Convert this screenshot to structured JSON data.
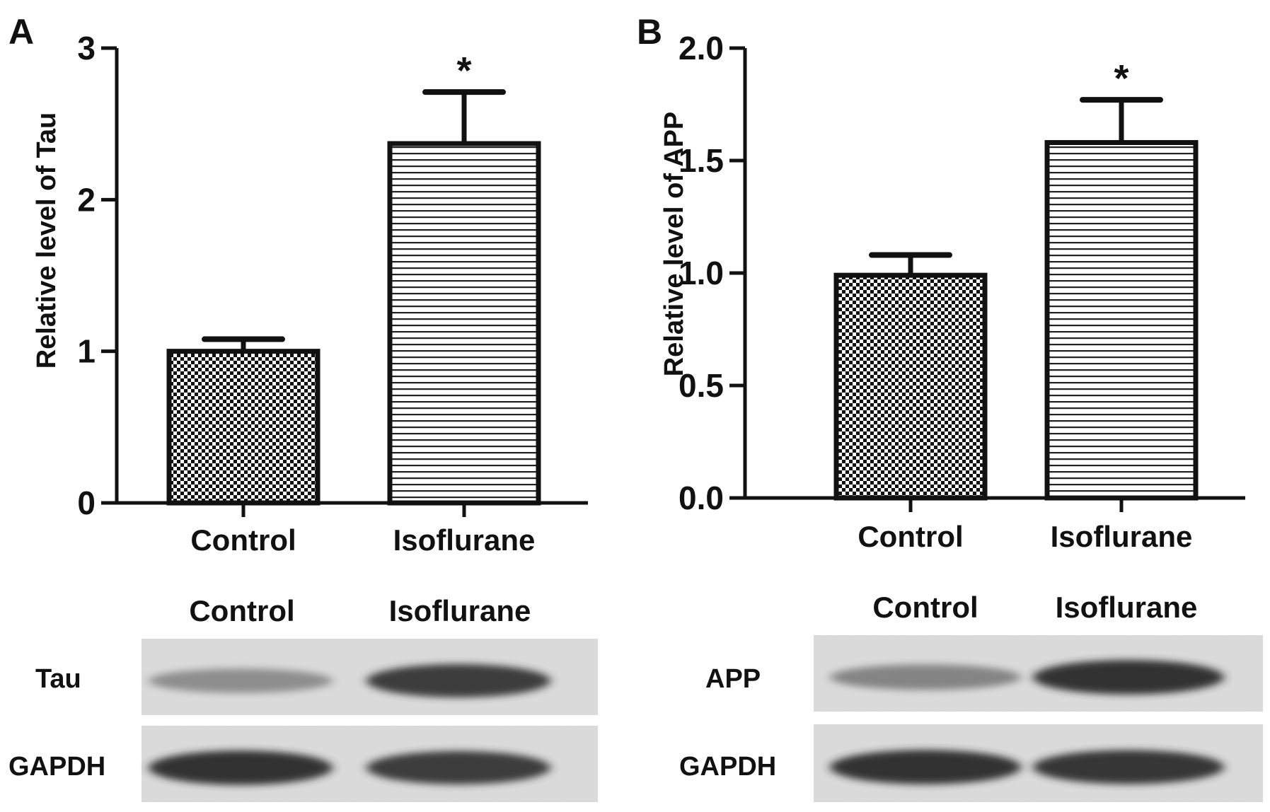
{
  "panels": [
    {
      "letter": "A",
      "blot": {
        "lane_labels": [
          "Control",
          "Isoflurane"
        ],
        "rows": [
          {
            "label": "Tau",
            "band_intensity": [
              0.45,
              0.85
            ]
          },
          {
            "label": "GAPDH",
            "band_intensity": [
              0.9,
              0.85
            ]
          }
        ]
      }
    },
    {
      "letter": "B",
      "blot": {
        "lane_labels": [
          "Control",
          "Isoflurane"
        ],
        "rows": [
          {
            "label": "APP",
            "band_intensity": [
              0.5,
              0.9
            ]
          },
          {
            "label": "GAPDH",
            "band_intensity": [
              0.9,
              0.88
            ]
          }
        ]
      }
    }
  ],
  "chart_data": [
    {
      "type": "bar",
      "categories": [
        "Control",
        "Isoflurane"
      ],
      "values": [
        1.0,
        2.37
      ],
      "errors": [
        0.08,
        0.34
      ],
      "significance": [
        "",
        "*"
      ],
      "ylabel": "Relative level of Tau",
      "ylim": [
        0,
        3
      ],
      "yticks": [
        0,
        1,
        2,
        3
      ],
      "ytick_labels": [
        "0",
        "1",
        "2",
        "3"
      ],
      "patterns": [
        "checker",
        "hlines"
      ],
      "grid": false
    },
    {
      "type": "bar",
      "categories": [
        "Control",
        "Isoflurane"
      ],
      "values": [
        0.99,
        1.58
      ],
      "errors": [
        0.09,
        0.19
      ],
      "significance": [
        "",
        "*"
      ],
      "ylabel": "Relative level of APP",
      "ylim": [
        0,
        2.0
      ],
      "yticks": [
        0,
        0.5,
        1.0,
        1.5,
        2.0
      ],
      "ytick_labels": [
        "0.0",
        "0.5",
        "1.0",
        "1.5",
        "2.0"
      ],
      "patterns": [
        "checker",
        "hlines"
      ],
      "grid": false
    }
  ]
}
